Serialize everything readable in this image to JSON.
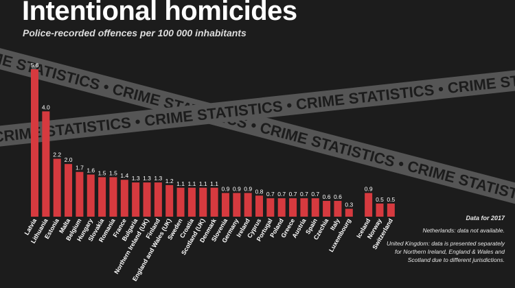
{
  "header": {
    "title": "Intentional homicides",
    "subtitle": "Police-recorded offences per 100 000 inhabitants"
  },
  "tape_text": "CRIME STATISTICS • CRIME STATISTICS • CRIME STATISTICS •",
  "notes": {
    "data_year": "Data for 2017",
    "netherlands": "Netherlands: data not available.",
    "uk": "United Kingdom: data is presented separately for Northern Ireland, England & Wales and Scotland due to different jurisdictions."
  },
  "colors": {
    "background": "#1c1c1c",
    "bar": "#d63a3f",
    "tape": "#555555",
    "tape_text": "#1c1c1c",
    "text": "#ffffff"
  },
  "chart_data": {
    "type": "bar",
    "title": "Intentional homicides",
    "subtitle": "Police-recorded offences per 100 000 inhabitants",
    "xlabel": "",
    "ylabel": "",
    "grid": false,
    "ylim": [
      0,
      6
    ],
    "categories": [
      "Latvia",
      "Lithuania",
      "Estonia",
      "Malta",
      "Belgium",
      "Hungary",
      "Slovakia",
      "Romania",
      "France",
      "Bulgaria",
      "Northern Ireland (UK)",
      "Finland",
      "England and Wales (UK)",
      "Sweden",
      "Croatia",
      "Scotland (UK)",
      "Denmark",
      "Slovenia",
      "Germany",
      "Ireland",
      "Cyprus",
      "Portugal",
      "Poland",
      "Greece",
      "Austria",
      "Spain",
      "Czechia",
      "Italy",
      "Luxembourg",
      "Iceland",
      "Norway",
      "Switzerland"
    ],
    "values": [
      5.6,
      4.0,
      2.2,
      2.0,
      1.7,
      1.6,
      1.5,
      1.5,
      1.4,
      1.3,
      1.3,
      1.3,
      1.2,
      1.1,
      1.1,
      1.1,
      1.1,
      0.9,
      0.9,
      0.9,
      0.8,
      0.7,
      0.7,
      0.7,
      0.7,
      0.7,
      0.6,
      0.6,
      0.3,
      0.9,
      0.5,
      0.5
    ],
    "value_labels": [
      "5.6",
      "4.0",
      "2.2",
      "2.0",
      "1.7",
      "1.6",
      "1.5",
      "1.5",
      "1.4",
      "1.3",
      "1.3",
      "1.3",
      "1.2",
      "1.1",
      "1.1",
      "1.1",
      "1.1",
      "0.9",
      "0.9",
      "0.9",
      "0.8",
      "0.7",
      "0.7",
      "0.7",
      "0.7",
      "0.7",
      "0.6",
      "0.6",
      "0.3",
      "0.9",
      "0.5",
      "0.5"
    ],
    "groups": [
      "EU",
      "EU",
      "EU",
      "EU",
      "EU",
      "EU",
      "EU",
      "EU",
      "EU",
      "EU",
      "EU",
      "EU",
      "EU",
      "EU",
      "EU",
      "EU",
      "EU",
      "EU",
      "EU",
      "EU",
      "EU",
      "EU",
      "EU",
      "EU",
      "EU",
      "EU",
      "EU",
      "EU",
      "EU",
      "EFTA",
      "EFTA",
      "EFTA"
    ]
  }
}
